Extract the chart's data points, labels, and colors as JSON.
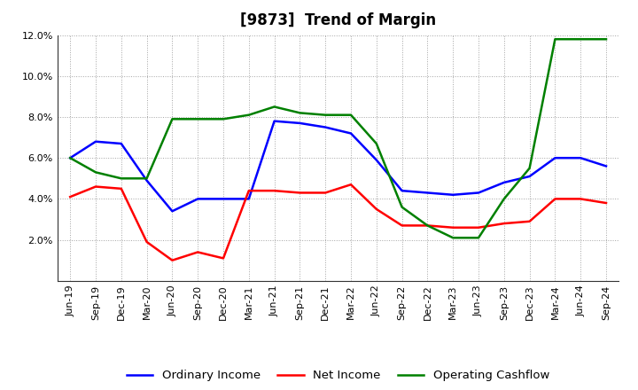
{
  "title": "[9873]  Trend of Margin",
  "x_labels": [
    "Jun-19",
    "Sep-19",
    "Dec-19",
    "Mar-20",
    "Jun-20",
    "Sep-20",
    "Dec-20",
    "Mar-21",
    "Jun-21",
    "Sep-21",
    "Dec-21",
    "Mar-22",
    "Jun-22",
    "Sep-22",
    "Dec-22",
    "Mar-23",
    "Jun-23",
    "Sep-23",
    "Dec-23",
    "Mar-24",
    "Jun-24",
    "Sep-24"
  ],
  "ordinary_income": [
    6.0,
    6.8,
    6.7,
    4.9,
    3.4,
    4.0,
    4.0,
    4.0,
    7.8,
    7.7,
    7.5,
    7.2,
    5.9,
    4.4,
    4.3,
    4.2,
    4.3,
    4.8,
    5.1,
    6.0,
    6.0,
    5.6
  ],
  "net_income": [
    4.1,
    4.6,
    4.5,
    1.9,
    1.0,
    1.4,
    1.1,
    4.4,
    4.4,
    4.3,
    4.3,
    4.7,
    3.5,
    2.7,
    2.7,
    2.6,
    2.6,
    2.8,
    2.9,
    4.0,
    4.0,
    3.8
  ],
  "operating_cf": [
    6.0,
    5.3,
    5.0,
    5.0,
    7.9,
    7.9,
    7.9,
    8.1,
    8.5,
    8.2,
    8.1,
    8.1,
    6.7,
    3.6,
    2.7,
    2.1,
    2.1,
    4.0,
    5.5,
    11.8,
    11.8,
    11.8
  ],
  "ylim": [
    0,
    12.0
  ],
  "yticks": [
    2.0,
    4.0,
    6.0,
    8.0,
    10.0,
    12.0
  ],
  "color_oi": "#0000FF",
  "color_ni": "#FF0000",
  "color_ocf": "#008000",
  "legend_oi": "Ordinary Income",
  "legend_ni": "Net Income",
  "legend_ocf": "Operating Cashflow",
  "bg_color": "#FFFFFF",
  "grid_color": "#999999",
  "title_fontsize": 12,
  "tick_fontsize": 8,
  "legend_fontsize": 9.5
}
